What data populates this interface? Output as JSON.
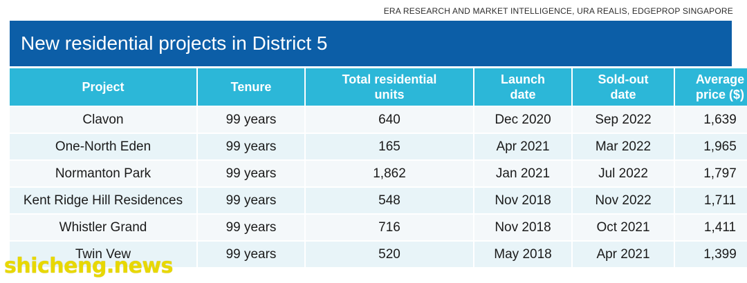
{
  "source": "ERA RESEARCH AND MARKET INTELLIGENCE, URA REALIS, EDGEPROP SINGAPORE",
  "title": "New residential projects in District 5",
  "watermark": "shicheng.news",
  "colors": {
    "title_bar": "#0c5ea7",
    "header": "#2cb7d8"
  },
  "chart_data": {
    "type": "table",
    "columns": [
      "Project",
      "Tenure",
      "Total residential\nunits",
      "Launch\ndate",
      "Sold-out\ndate",
      "Average\nprice ($)"
    ],
    "rows": [
      [
        "Clavon",
        "99 years",
        "640",
        "Dec 2020",
        "Sep 2022",
        "1,639"
      ],
      [
        "One-North Eden",
        "99 years",
        "165",
        "Apr 2021",
        "Mar 2022",
        "1,965"
      ],
      [
        "Normanton Park",
        "99 years",
        "1,862",
        "Jan 2021",
        "Jul 2022",
        "1,797"
      ],
      [
        "Kent Ridge Hill Residences",
        "99 years",
        "548",
        "Nov 2018",
        "Nov 2022",
        "1,711"
      ],
      [
        "Whistler Grand",
        "99 years",
        "716",
        "Nov 2018",
        "Oct 2021",
        "1,411"
      ],
      [
        "Twin Vew",
        "99 years",
        "520",
        "May 2018",
        "Apr 2021",
        "1,399"
      ]
    ]
  }
}
